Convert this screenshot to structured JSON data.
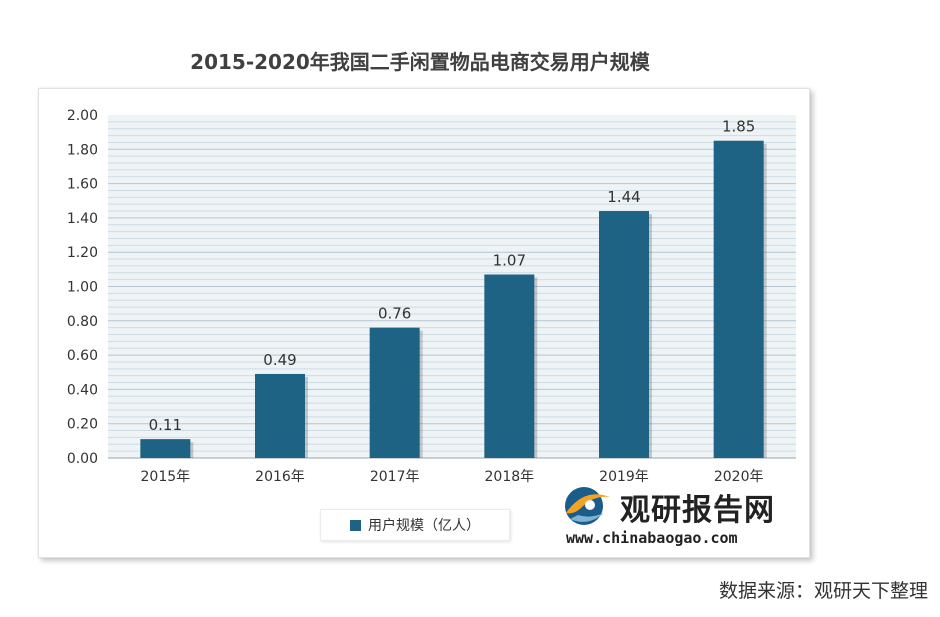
{
  "chart_data": {
    "type": "bar",
    "title": "2015-2020年我国二手闲置物品电商交易用户规模",
    "categories": [
      "2015年",
      "2016年",
      "2017年",
      "2018年",
      "2019年",
      "2020年"
    ],
    "series": [
      {
        "name": "用户规模（亿人）",
        "values": [
          0.11,
          0.49,
          0.76,
          1.07,
          1.44,
          1.85
        ],
        "color": "#1f6384"
      }
    ],
    "data_labels": [
      "0.11",
      "0.49",
      "0.76",
      "1.07",
      "1.44",
      "1.85"
    ],
    "y_ticks": [
      "0.00",
      "0.20",
      "0.40",
      "0.60",
      "0.80",
      "1.00",
      "1.20",
      "1.40",
      "1.60",
      "1.80",
      "2.00"
    ],
    "ylim": [
      0,
      2.0
    ],
    "grid": true,
    "legend_position": "bottom"
  },
  "watermark": {
    "brand": "观研报告网",
    "url": "www.chinabaogao.com"
  },
  "source_note": "数据来源：观研天下整理"
}
